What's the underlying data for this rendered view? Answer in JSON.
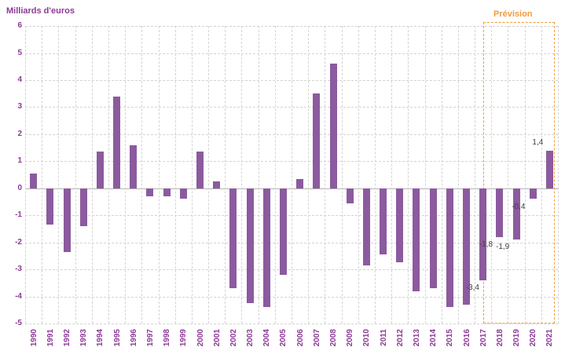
{
  "chart_data": {
    "type": "bar",
    "title": "",
    "xlabel": "",
    "ylabel": "Milliards d'euros",
    "ylim": [
      -5,
      6
    ],
    "ytick_step": 1,
    "grid": true,
    "bar_color": "#8c5a9e",
    "axis_text_color": "#8c3a96",
    "data_label_color": "#404040",
    "categories": [
      "1990",
      "1991",
      "1992",
      "1993",
      "1994",
      "1995",
      "1996",
      "1997",
      "1998",
      "1999",
      "2000",
      "2001",
      "2002",
      "2003",
      "2004",
      "2005",
      "2006",
      "2007",
      "2008",
      "2009",
      "2010",
      "2011",
      "2012",
      "2013",
      "2014",
      "2015",
      "2016",
      "2017",
      "2018",
      "2019",
      "2020",
      "2021"
    ],
    "values": [
      0.55,
      -1.35,
      -2.35,
      -1.4,
      1.35,
      3.4,
      1.6,
      -0.3,
      -0.3,
      -0.4,
      1.35,
      0.25,
      -3.7,
      -4.25,
      -4.4,
      -3.2,
      0.35,
      3.5,
      4.6,
      -0.55,
      -2.85,
      -2.45,
      -2.75,
      -3.8,
      -3.7,
      -4.4,
      -4.3,
      -3.4,
      -1.8,
      -1.9,
      -0.4,
      1.4
    ],
    "data_labels": [
      {
        "category": "2017",
        "text": "-3,4",
        "dx": -22
      },
      {
        "category": "2018",
        "text": "-1,8",
        "dx": -26
      },
      {
        "category": "2019",
        "text": "-1,9",
        "dx": -26
      },
      {
        "category": "2020",
        "text": "-0,4",
        "dx": -27
      },
      {
        "category": "2021",
        "text": "1,4",
        "dx": -22
      }
    ],
    "forecast_zone": {
      "label": "Prévision",
      "start_category": "2018",
      "end_category": "2021",
      "border_color": "#f09d3c",
      "label_color": "#f09d3c"
    }
  }
}
